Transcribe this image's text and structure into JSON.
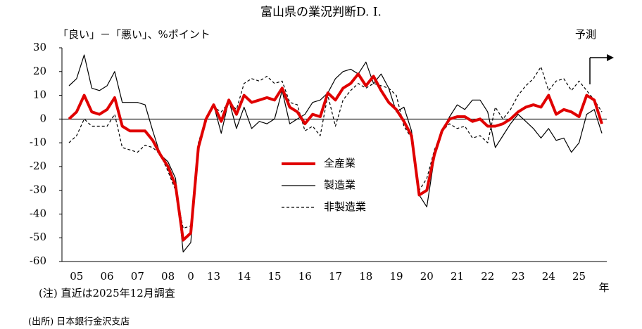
{
  "chart_data": {
    "type": "line",
    "title": "富山県の業況判断D. I.",
    "y_label": "「良い」－「悪い」、%ポイント",
    "forecast_label": "予測",
    "x_unit": "年",
    "note": "(注) 直近は2025年12月調査",
    "source": "(出所) 日本銀行金沢支店",
    "categories": [
      null,
      "05",
      null,
      null,
      null,
      "06",
      null,
      null,
      null,
      "07",
      null,
      null,
      null,
      "08",
      null,
      null,
      "0",
      null,
      null,
      "13",
      null,
      null,
      null,
      "14",
      null,
      null,
      null,
      "15",
      null,
      null,
      null,
      "16",
      null,
      null,
      null,
      "17",
      null,
      null,
      null,
      "18",
      null,
      null,
      null,
      "19",
      null,
      null,
      null,
      "20",
      null,
      null,
      null,
      "21",
      null,
      null,
      null,
      "22",
      null,
      null,
      null,
      "23",
      null,
      null,
      null,
      "24",
      null,
      null,
      null,
      "25",
      null,
      null,
      null
    ],
    "ylim": [
      -60,
      30
    ],
    "yticks": [
      -60,
      -50,
      -40,
      -30,
      -20,
      -10,
      0,
      10,
      20,
      30
    ],
    "series": [
      {
        "name": "全産業",
        "color": "#e00000",
        "line_style": "thick",
        "values": [
          0,
          3,
          10,
          3,
          2,
          4,
          9,
          -3,
          -5,
          -5,
          -5,
          -9,
          -15,
          -20,
          -28,
          -51,
          -48,
          -12,
          0,
          6,
          -1,
          8,
          2,
          10,
          7,
          8,
          9,
          8,
          13,
          5,
          3,
          -2,
          2,
          1,
          11,
          8,
          13,
          15,
          19,
          14,
          18,
          12,
          7,
          4,
          -1,
          -7,
          -32,
          -30,
          -15,
          -5,
          0,
          1,
          1,
          -1,
          0,
          -3,
          -3,
          -2,
          0,
          3,
          5,
          6,
          5,
          10,
          2,
          4,
          3,
          1,
          10,
          8,
          -2
        ]
      },
      {
        "name": "製造業",
        "color": "#000000",
        "line_style": "solid",
        "values": [
          14,
          17,
          27,
          13,
          12,
          14,
          20,
          7,
          7,
          7,
          6,
          -5,
          -15,
          -18,
          -25,
          -56,
          -52,
          -12,
          0,
          6,
          -6,
          8,
          -4,
          5,
          -4,
          -1,
          -2,
          0,
          12,
          -2,
          0,
          2,
          7,
          8,
          11,
          17,
          20,
          21,
          19,
          24,
          15,
          19,
          13,
          3,
          5,
          -5,
          -32,
          -37,
          -16,
          -5,
          1,
          6,
          4,
          8,
          8,
          3,
          -12,
          -7,
          -2,
          2,
          -1,
          -4,
          -8,
          -4,
          -9,
          -8,
          -14,
          -10,
          2,
          4,
          -6
        ]
      },
      {
        "name": "非製造業",
        "color": "#000000",
        "line_style": "dashed",
        "values": [
          -10,
          -7,
          0,
          -3,
          -3,
          -3,
          2,
          -12,
          -13,
          -14,
          -11,
          -12,
          -15,
          -22,
          -30,
          -46,
          -45,
          -10,
          1,
          5,
          3,
          7,
          4,
          15,
          17,
          16,
          18,
          15,
          16,
          7,
          6,
          -5,
          -3,
          -7,
          10,
          -3,
          8,
          12,
          15,
          13,
          15,
          14,
          13,
          10,
          -3,
          -8,
          -30,
          -25,
          -13,
          -5,
          -2,
          -4,
          -3,
          -8,
          -7,
          -10,
          5,
          0,
          4,
          10,
          14,
          17,
          22,
          12,
          16,
          17,
          12,
          16,
          12,
          8,
          3
        ]
      }
    ]
  }
}
